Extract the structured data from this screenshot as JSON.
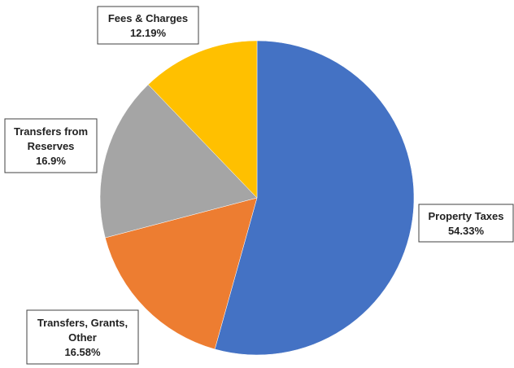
{
  "chart_data": {
    "type": "pie",
    "title": "",
    "start_angle_deg": 0,
    "direction": "clockwise",
    "slices": [
      {
        "name": "Property Taxes",
        "value": 54.33,
        "value_label": "54.33%",
        "color": "#4472C4",
        "label_lines": [
          "Property Taxes",
          "54.33%"
        ]
      },
      {
        "name": "Transfers, Grants, Other",
        "value": 16.58,
        "value_label": "16.58%",
        "color": "#ED7D31",
        "label_lines": [
          "Transfers, Grants,",
          "Other",
          "16.58%"
        ]
      },
      {
        "name": "Transfers from Reserves",
        "value": 16.9,
        "value_label": "16.9%",
        "color": "#A5A5A5",
        "label_lines": [
          "Transfers from",
          "Reserves",
          "16.9%"
        ]
      },
      {
        "name": "Fees & Charges",
        "value": 12.19,
        "value_label": "12.19%",
        "color": "#FFC000",
        "label_lines": [
          "Fees & Charges",
          "12.19%"
        ]
      }
    ]
  }
}
